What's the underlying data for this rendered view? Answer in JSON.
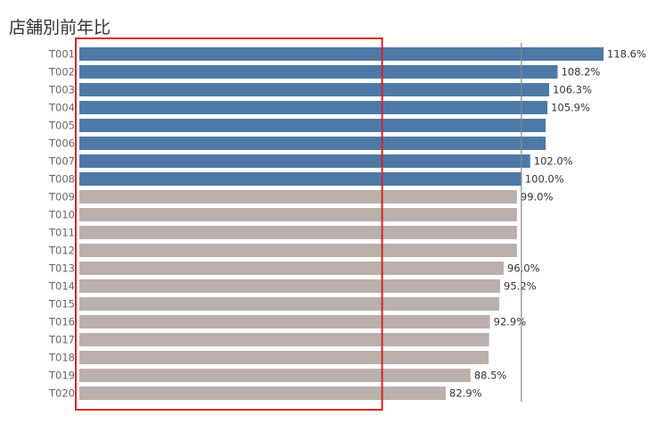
{
  "chart_data": {
    "type": "bar",
    "orientation": "horizontal",
    "title": "店舗別前年比",
    "categories": [
      "T001",
      "T002",
      "T003",
      "T004",
      "T005",
      "T006",
      "T007",
      "T008",
      "T009",
      "T010",
      "T011",
      "T012",
      "T013",
      "T014",
      "T015",
      "T016",
      "T017",
      "T018",
      "T019",
      "T020"
    ],
    "values": [
      118.6,
      108.2,
      106.3,
      105.9,
      105.5,
      105.5,
      102.0,
      100.0,
      99.0,
      99.0,
      99.0,
      99.0,
      96.0,
      95.2,
      95.0,
      92.9,
      92.7,
      92.6,
      88.5,
      82.9
    ],
    "data_labels": [
      "118.6%",
      "108.2%",
      "106.3%",
      "105.9%",
      "",
      "",
      "102.0%",
      "100.0%",
      "99.0%",
      "",
      "",
      "",
      "96.0%",
      "95.2%",
      "",
      "92.9%",
      "",
      "",
      "88.5%",
      "82.9%"
    ],
    "xlim": [
      0,
      120
    ],
    "reference_line": 100,
    "colors": {
      "above": "#4e79a7",
      "below": "#bab0ac",
      "reference_line": "#888888",
      "highlight_box": "#dd2222"
    },
    "highlight_box_range": [
      0,
      68.5
    ],
    "grid": false,
    "legend": "none"
  }
}
